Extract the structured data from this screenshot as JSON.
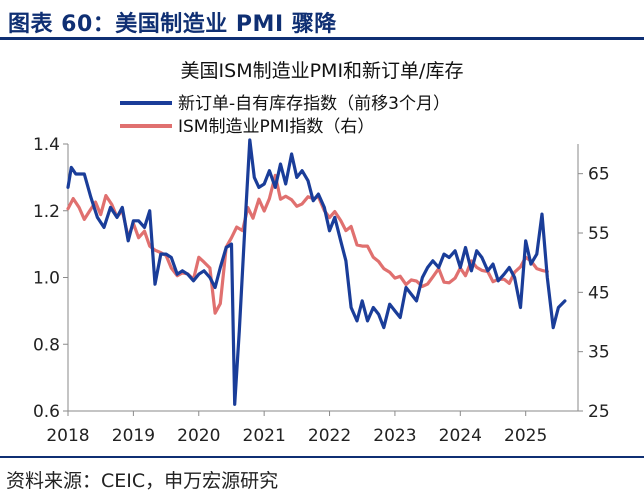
{
  "figure_label": "图表 60：美国制造业 PMI 骤降",
  "source": "资料来源：CEIC，申万宏源研究",
  "chart_data": {
    "type": "line",
    "title": "美国ISM制造业PMI和新订单/库存",
    "x_ticks": [
      "2018",
      "2019",
      "2020",
      "2021",
      "2022",
      "2023",
      "2024",
      "2025"
    ],
    "xlim": [
      2018,
      2025.8
    ],
    "y_left": {
      "lim": [
        0.6,
        1.4
      ],
      "ticks": [
        "1.4",
        "1.2",
        "1.0",
        "0.8",
        "0.6"
      ]
    },
    "y_right": {
      "lim": [
        25,
        70
      ],
      "ticks": [
        "65",
        "55",
        "45",
        "35",
        "25"
      ]
    },
    "colors": {
      "primary": "#1a3d99",
      "secondary": "#e0706f",
      "header": "#0f2f73"
    },
    "series": [
      {
        "name": "新订单-自有库存指数（前移3个月）",
        "axis": "left",
        "color": "#1a3d99",
        "x": [
          2018.0,
          2018.05,
          2018.12,
          2018.25,
          2018.35,
          2018.45,
          2018.55,
          2018.65,
          2018.75,
          2018.83,
          2018.92,
          2019.0,
          2019.08,
          2019.17,
          2019.25,
          2019.33,
          2019.42,
          2019.5,
          2019.58,
          2019.67,
          2019.75,
          2019.83,
          2019.92,
          2020.0,
          2020.08,
          2020.17,
          2020.25,
          2020.33,
          2020.42,
          2020.5,
          2020.55,
          2020.62,
          2020.7,
          2020.78,
          2020.85,
          2020.92,
          2021.0,
          2021.08,
          2021.17,
          2021.25,
          2021.33,
          2021.42,
          2021.5,
          2021.58,
          2021.67,
          2021.75,
          2021.83,
          2021.92,
          2022.0,
          2022.08,
          2022.17,
          2022.25,
          2022.33,
          2022.42,
          2022.5,
          2022.58,
          2022.67,
          2022.75,
          2022.83,
          2022.92,
          2023.0,
          2023.08,
          2023.17,
          2023.25,
          2023.33,
          2023.42,
          2023.5,
          2023.58,
          2023.67,
          2023.75,
          2023.83,
          2023.92,
          2024.0,
          2024.08,
          2024.17,
          2024.25,
          2024.33,
          2024.42,
          2024.5,
          2024.58,
          2024.67,
          2024.75,
          2024.83,
          2024.92,
          2025.0,
          2025.08,
          2025.17,
          2025.25,
          2025.33,
          2025.42,
          2025.5,
          2025.6
        ],
        "values": [
          1.27,
          1.33,
          1.31,
          1.31,
          1.24,
          1.18,
          1.15,
          1.21,
          1.18,
          1.21,
          1.11,
          1.17,
          1.17,
          1.15,
          1.2,
          0.98,
          1.07,
          1.07,
          1.06,
          1.01,
          1.02,
          1.01,
          0.99,
          1.01,
          1.02,
          1.0,
          0.97,
          1.03,
          1.09,
          1.1,
          0.62,
          0.84,
          1.13,
          1.42,
          1.3,
          1.27,
          1.28,
          1.32,
          1.27,
          1.34,
          1.28,
          1.37,
          1.3,
          1.32,
          1.29,
          1.23,
          1.25,
          1.21,
          1.14,
          1.18,
          1.11,
          1.05,
          0.91,
          0.87,
          0.93,
          0.87,
          0.91,
          0.89,
          0.85,
          0.92,
          0.9,
          0.88,
          0.97,
          0.95,
          0.93,
          1.0,
          1.03,
          1.05,
          1.03,
          1.07,
          1.06,
          1.08,
          1.03,
          1.09,
          1.02,
          1.08,
          1.06,
          1.02,
          1.04,
          0.99,
          1.01,
          1.03,
          1.0,
          0.91,
          1.11,
          1.04,
          1.07,
          1.19,
          1.0,
          0.85,
          0.91,
          0.93
        ]
      },
      {
        "name": "ISM制造业PMI指数（右）",
        "axis": "right",
        "color": "#e0706f",
        "x": [
          2018.0,
          2018.08,
          2018.17,
          2018.25,
          2018.33,
          2018.42,
          2018.5,
          2018.58,
          2018.67,
          2018.75,
          2018.83,
          2018.92,
          2019.0,
          2019.08,
          2019.17,
          2019.25,
          2019.33,
          2019.42,
          2019.5,
          2019.58,
          2019.67,
          2019.75,
          2019.83,
          2019.92,
          2020.0,
          2020.08,
          2020.17,
          2020.25,
          2020.33,
          2020.42,
          2020.5,
          2020.58,
          2020.67,
          2020.75,
          2020.83,
          2020.92,
          2021.0,
          2021.08,
          2021.17,
          2021.25,
          2021.33,
          2021.42,
          2021.5,
          2021.58,
          2021.67,
          2021.75,
          2021.83,
          2021.92,
          2022.0,
          2022.08,
          2022.17,
          2022.25,
          2022.33,
          2022.42,
          2022.5,
          2022.58,
          2022.67,
          2022.75,
          2022.83,
          2022.92,
          2023.0,
          2023.08,
          2023.17,
          2023.25,
          2023.33,
          2023.42,
          2023.5,
          2023.58,
          2023.67,
          2023.75,
          2023.83,
          2023.92,
          2024.0,
          2024.08,
          2024.17,
          2024.25,
          2024.33,
          2024.42,
          2024.5,
          2024.58,
          2024.67,
          2024.75,
          2024.83,
          2024.92,
          2025.0,
          2025.08,
          2025.17,
          2025.25,
          2025.33
        ],
        "values": [
          59.1,
          60.8,
          59.3,
          57.3,
          58.7,
          60.2,
          58.1,
          61.3,
          59.8,
          57.7,
          58.8,
          54.3,
          56.6,
          54.2,
          55.3,
          52.8,
          52.1,
          51.7,
          51.2,
          49.1,
          47.8,
          48.3,
          48.1,
          47.2,
          50.9,
          50.1,
          49.1,
          41.5,
          43.1,
          52.6,
          54.2,
          56.0,
          55.4,
          59.3,
          57.5,
          60.7,
          58.7,
          60.8,
          64.7,
          60.7,
          61.2,
          60.6,
          59.5,
          59.9,
          61.1,
          60.8,
          61.1,
          58.8,
          57.6,
          58.6,
          57.1,
          55.4,
          56.1,
          53.0,
          52.8,
          52.8,
          50.9,
          50.2,
          49.0,
          48.4,
          47.4,
          47.7,
          46.3,
          47.1,
          46.9,
          46.0,
          46.4,
          47.6,
          49.0,
          46.7,
          46.6,
          47.4,
          49.1,
          47.8,
          50.3,
          49.2,
          48.7,
          48.5,
          46.8,
          47.2,
          47.2,
          46.5,
          48.4,
          49.3,
          50.9,
          50.3,
          49.0,
          48.7,
          48.5
        ]
      }
    ]
  }
}
